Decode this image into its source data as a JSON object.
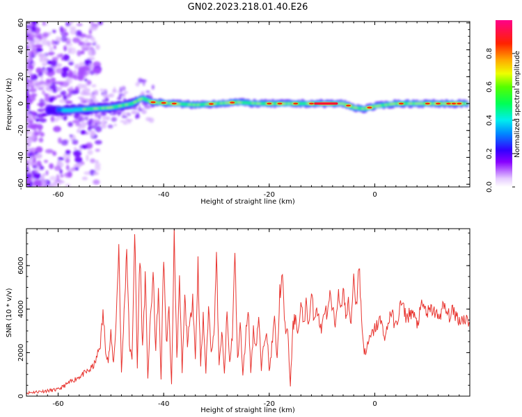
{
  "title": "GN02.2023.218.01.40.E26",
  "chart_data": [
    {
      "type": "heatmap",
      "xlabel": "Height of straight line (km)",
      "ylabel": "Frequency (Hz)",
      "xlim": [
        -66,
        18
      ],
      "ylim": [
        -62,
        61
      ],
      "x_ticks": [
        "-60",
        "-40",
        "-20",
        "0"
      ],
      "x_tick_values": [
        -60,
        -40,
        -20,
        0
      ],
      "y_ticks": [
        "-60",
        "-40",
        "-20",
        "0",
        "20",
        "40",
        "60"
      ],
      "y_tick_values": [
        -60,
        -40,
        -20,
        0,
        20,
        40,
        60
      ],
      "colorbar": {
        "label": "Normalized spectral amplitude",
        "ticks": [
          "0.0",
          "0.2",
          "0.4",
          "0.6",
          "0.8"
        ],
        "tick_values": [
          0.0,
          0.2,
          0.4,
          0.6,
          0.8
        ],
        "range": [
          0,
          1
        ]
      },
      "ridge": {
        "x": [
          -66,
          -62,
          -58,
          -54,
          -50,
          -46,
          -44,
          -42,
          -38,
          -34,
          -30,
          -26,
          -22,
          -18,
          -14,
          -10,
          -6,
          -4,
          -2,
          0,
          4,
          8,
          12,
          17
        ],
        "y": [
          -4,
          -5,
          -5,
          -4,
          -3,
          0,
          4,
          1,
          0,
          -1,
          0,
          1,
          0,
          0,
          0,
          0,
          0,
          -3,
          -4,
          -2,
          0,
          0,
          0,
          0
        ]
      },
      "grid": false
    },
    {
      "type": "line",
      "xlabel": "Height of straight line (km)",
      "ylabel": "SNR (10 * v/v)",
      "xlim": [
        -66,
        18
      ],
      "ylim": [
        0,
        7700
      ],
      "x_ticks": [
        "-60",
        "-40",
        "-20",
        "0"
      ],
      "x_tick_values": [
        -60,
        -40,
        -20,
        0
      ],
      "y_ticks": [
        "0",
        "2000",
        "4000",
        "6000"
      ],
      "y_tick_values": [
        0,
        2000,
        4000,
        6000
      ],
      "color": "#e8342f",
      "series": [
        {
          "x": [
            -66,
            -64,
            -62,
            -60,
            -58,
            -56,
            -54,
            -53,
            -52,
            -51.5,
            -51,
            -50.5,
            -50,
            -49.5,
            -49,
            -48.5,
            -48,
            -47.5,
            -47,
            -46.5,
            -46,
            -45.5,
            -45,
            -44.5,
            -44,
            -43.5,
            -43,
            -42.5,
            -42,
            -41.5,
            -41,
            -40.5,
            -40,
            -39.5,
            -39,
            -38.5,
            -38,
            -37.5,
            -37,
            -36.5,
            -36,
            -35.5,
            -35,
            -34.5,
            -34,
            -33.5,
            -33,
            -32.5,
            -32,
            -31.5,
            -31,
            -30.5,
            -30,
            -29.5,
            -29,
            -28.5,
            -28,
            -27.5,
            -27,
            -26.5,
            -26,
            -25.5,
            -25,
            -24.5,
            -24,
            -23.5,
            -23,
            -22.5,
            -22,
            -21.5,
            -21,
            -20.5,
            -20,
            -19.5,
            -19,
            -18.5,
            -18,
            -17.5,
            -17,
            -16.5,
            -16,
            -15.5,
            -15,
            -14.5,
            -14,
            -13.5,
            -13,
            -12.5,
            -12,
            -11.5,
            -11,
            -10.5,
            -10,
            -9.5,
            -9,
            -8.5,
            -8,
            -7.5,
            -7,
            -6.5,
            -6,
            -5.5,
            -5,
            -4.5,
            -4,
            -3.5,
            -3,
            -2.5,
            -2,
            -1.5,
            -1,
            0,
            1,
            2,
            3,
            4,
            5,
            6,
            7,
            8,
            9,
            10,
            11,
            12,
            13,
            14,
            15,
            16,
            17,
            18
          ],
          "y": [
            150,
            200,
            250,
            300,
            600,
            900,
            1200,
            1500,
            2400,
            3800,
            2200,
            1600,
            2800,
            1500,
            3500,
            7000,
            1000,
            3800,
            6900,
            2400,
            1600,
            7700,
            1300,
            6700,
            2200,
            5400,
            900,
            3600,
            5600,
            2100,
            4900,
            800,
            6600,
            2400,
            3900,
            500,
            7300,
            1900,
            5100,
            1100,
            4500,
            2500,
            3300,
            4700,
            1700,
            6100,
            1400,
            3600,
            1100,
            4100,
            2200,
            2700,
            6500,
            1300,
            3000,
            1000,
            3800,
            1500,
            2800,
            6500,
            1600,
            3400,
            900,
            2600,
            4200,
            1100,
            3000,
            2300,
            3700,
            1200,
            2500,
            3200,
            1100,
            2300,
            3500,
            1600,
            4800,
            5300,
            3200,
            2900,
            500,
            3200,
            3700,
            2900,
            4100,
            3400,
            4200,
            3300,
            4600,
            3600,
            4200,
            3300,
            3100,
            4100,
            3600,
            4500,
            3900,
            3300,
            4800,
            3800,
            5100,
            3600,
            4200,
            3400,
            5600,
            4100,
            6200,
            3500,
            2000,
            2200,
            2600,
            3100,
            3500,
            2700,
            3900,
            3200,
            4300,
            3600,
            3900,
            3300,
            4200,
            3800,
            4000,
            3600,
            4100,
            3700,
            3900,
            3500,
            3600,
            3400
          ]
        }
      ],
      "grid": false
    }
  ]
}
